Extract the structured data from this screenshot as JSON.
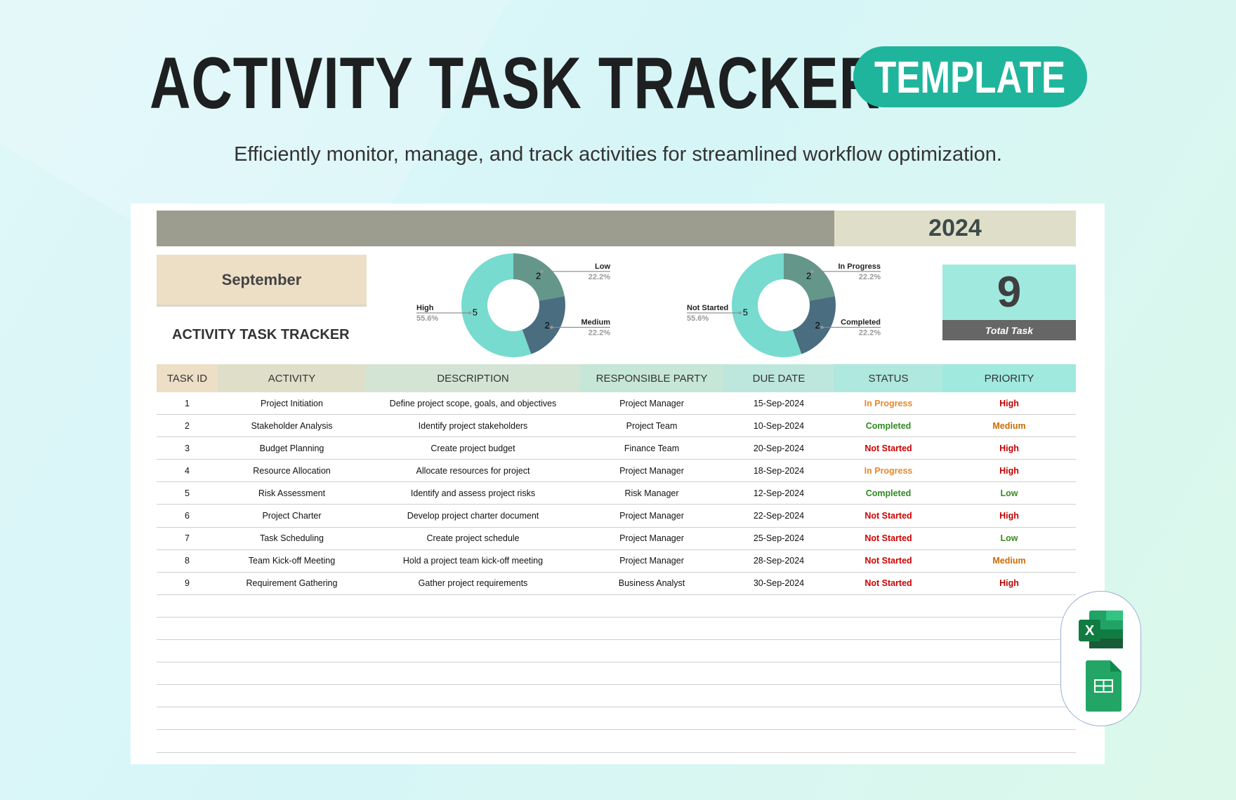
{
  "header": {
    "title": "ACTIVITY TASK TRACKER",
    "badge": "TEMPLATE",
    "subtitle": "Efficiently monitor, manage, and track activities for streamlined workflow optimization."
  },
  "sheet": {
    "year": "2024",
    "month": "September",
    "tracker_title": "ACTIVITY TASK TRACKER",
    "total_value": "9",
    "total_label": "Total Task"
  },
  "colors": {
    "accent": "#1fb59c",
    "slice_light": "#77dbcf",
    "slice_green": "#65968a",
    "slice_blue": "#4a6d80",
    "status_in_progress": "#e8892b",
    "status_completed": "#2e8b1e",
    "status_not_started": "#cc0000",
    "priority_high": "#c00000",
    "priority_medium": "#cc6a00",
    "priority_low": "#3a8a20"
  },
  "chart_data": [
    {
      "type": "pie",
      "donut": true,
      "labels": [
        "Low",
        "Medium",
        "High"
      ],
      "values": [
        2,
        2,
        5
      ],
      "percents": [
        "22.2%",
        "22.2%",
        "55.6%"
      ]
    },
    {
      "type": "pie",
      "donut": true,
      "labels": [
        "In Progress",
        "Completed",
        "Not Started"
      ],
      "values": [
        2,
        2,
        5
      ],
      "percents": [
        "22.2%",
        "22.2%",
        "55.6%"
      ]
    }
  ],
  "table": {
    "columns": [
      "TASK ID",
      "ACTIVITY",
      "DESCRIPTION",
      "RESPONSIBLE PARTY",
      "DUE DATE",
      "STATUS",
      "PRIORITY"
    ],
    "rows": [
      [
        "1",
        "Project Initiation",
        "Define project scope, goals, and objectives",
        "Project Manager",
        "15-Sep-2024",
        "In Progress",
        "High"
      ],
      [
        "2",
        "Stakeholder Analysis",
        "Identify project stakeholders",
        "Project Team",
        "10-Sep-2024",
        "Completed",
        "Medium"
      ],
      [
        "3",
        "Budget Planning",
        "Create project budget",
        "Finance Team",
        "20-Sep-2024",
        "Not Started",
        "High"
      ],
      [
        "4",
        "Resource Allocation",
        "Allocate resources for project",
        "Project Manager",
        "18-Sep-2024",
        "In Progress",
        "High"
      ],
      [
        "5",
        "Risk Assessment",
        "Identify and assess project risks",
        "Risk Manager",
        "12-Sep-2024",
        "Completed",
        "Low"
      ],
      [
        "6",
        "Project Charter",
        "Develop project charter document",
        "Project Manager",
        "22-Sep-2024",
        "Not Started",
        "High"
      ],
      [
        "7",
        "Task Scheduling",
        "Create project schedule",
        "Project Manager",
        "25-Sep-2024",
        "Not Started",
        "Low"
      ],
      [
        "8",
        "Team Kick-off Meeting",
        "Hold a project team kick-off meeting",
        "Project Manager",
        "28-Sep-2024",
        "Not Started",
        "Medium"
      ],
      [
        "9",
        "Requirement Gathering",
        "Gather project requirements",
        "Business Analyst",
        "30-Sep-2024",
        "Not Started",
        "High"
      ]
    ],
    "empty_rows": 7
  },
  "icons": [
    "excel-icon",
    "google-sheets-icon"
  ]
}
